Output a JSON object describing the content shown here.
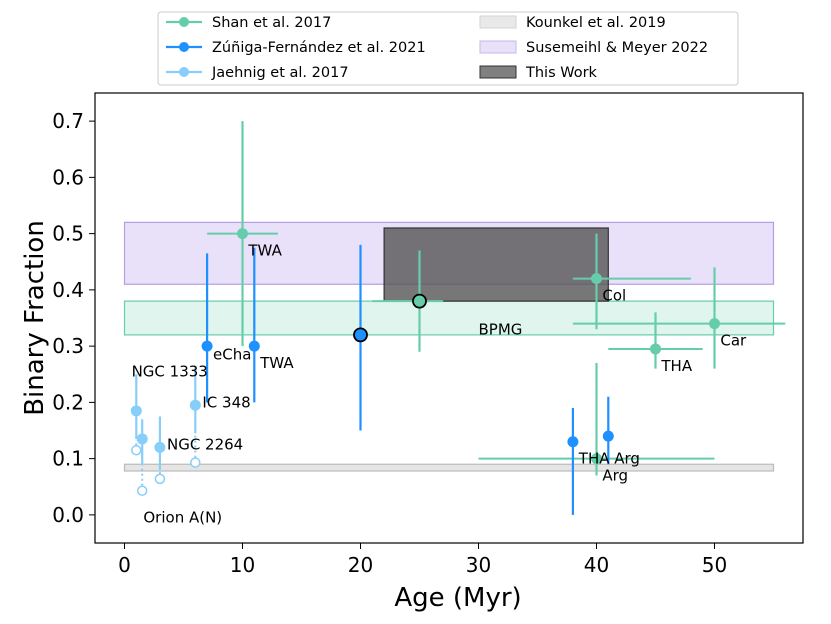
{
  "chart_data": {
    "type": "scatter",
    "xlabel": "Age (Myr)",
    "ylabel": "Binary Fraction",
    "xlim": [
      -2.5,
      57.5
    ],
    "ylim": [
      -0.05,
      0.75
    ],
    "xticks": [
      0,
      10,
      20,
      30,
      40,
      50
    ],
    "yticks": [
      0.0,
      0.1,
      0.2,
      0.3,
      0.4,
      0.5,
      0.6,
      0.7
    ],
    "xtick_labels": [
      "0",
      "10",
      "20",
      "30",
      "40",
      "50"
    ],
    "ytick_labels": [
      "0.0",
      "0.1",
      "0.2",
      "0.3",
      "0.4",
      "0.5",
      "0.6",
      "0.7"
    ],
    "legend_position": "top-center-outside",
    "legend": [
      {
        "label": "Shan et al. 2017",
        "kind": "line",
        "color": "#66cdaa"
      },
      {
        "label": "Zúñiga-Fernández et al. 2021",
        "kind": "line",
        "color": "#1e90ff"
      },
      {
        "label": "Jaehnig et al. 2017",
        "kind": "line",
        "color": "#87cefa"
      },
      {
        "label": "Kounkel et al. 2019",
        "kind": "patch",
        "color": "#d3d3d3"
      },
      {
        "label": "Susemeihl & Meyer 2022",
        "kind": "patch",
        "color": "#c8b5f0"
      },
      {
        "label": "This Work",
        "kind": "patch",
        "color": "#555555"
      }
    ],
    "bands": [
      {
        "name": "Kounkel et al. 2019",
        "x": [
          0,
          55
        ],
        "y": [
          0.078,
          0.09
        ],
        "color": "#cccccc",
        "edge": "#bbbbbb",
        "opacity": 0.5
      },
      {
        "name": "Susemeihl & Meyer 2022",
        "x": [
          0,
          55
        ],
        "y": [
          0.41,
          0.52
        ],
        "color": "#c8b5f0",
        "edge": "#b39ee6",
        "opacity": 0.4
      },
      {
        "name": "Shan band",
        "x": [
          0,
          55
        ],
        "y": [
          0.32,
          0.38
        ],
        "color": "#66cdaa",
        "edge": "#66cdaa",
        "opacity": 0.2
      },
      {
        "name": "This Work",
        "x": [
          22,
          41
        ],
        "y": [
          0.38,
          0.51
        ],
        "color": "#555555",
        "edge": "#333333",
        "opacity": 0.8
      }
    ],
    "series": [
      {
        "name": "Shan et al. 2017",
        "color": "#66cdaa",
        "points": [
          {
            "x": 10,
            "y": 0.5,
            "xerr": [
              3,
              3
            ],
            "yerr": [
              0.2,
              0.2
            ],
            "label": "TWA"
          },
          {
            "x": 40,
            "y": 0.42,
            "xerr": [
              2,
              8
            ],
            "yerr": [
              0.09,
              0.08
            ],
            "label": "Col"
          },
          {
            "x": 50,
            "y": 0.34,
            "xerr": [
              12,
              6
            ],
            "yerr": [
              0.08,
              0.1
            ],
            "label": "Car"
          },
          {
            "x": 45,
            "y": 0.295,
            "xerr": [
              4,
              4
            ],
            "yerr": [
              0.035,
              0.065
            ],
            "label": "THA"
          },
          {
            "x": 40,
            "y": 0.1,
            "xerr": [
              10,
              10
            ],
            "yerr": [
              0.03,
              0.17
            ],
            "label": "Arg"
          }
        ]
      },
      {
        "name": "Shan BPMG",
        "color": "#66cdaa",
        "edge": "#000000",
        "points": [
          {
            "x": 25,
            "y": 0.38,
            "xerr": [
              4,
              2
            ],
            "yerr": [
              0.09,
              0.09
            ],
            "label": "BPMG"
          }
        ]
      },
      {
        "name": "Zúñiga-Fernández et al. 2021",
        "color": "#1e90ff",
        "points": [
          {
            "x": 7,
            "y": 0.3,
            "xerr": [
              0,
              0
            ],
            "yerr": [
              0.1,
              0.165
            ],
            "label": "eCha"
          },
          {
            "x": 11,
            "y": 0.3,
            "xerr": [
              0,
              0
            ],
            "yerr": [
              0.1,
              0.175
            ],
            "label": "TWA"
          },
          {
            "x": 38,
            "y": 0.13,
            "xerr": [
              0,
              0
            ],
            "yerr": [
              0.13,
              0.06
            ],
            "label": "THA"
          },
          {
            "x": 41,
            "y": 0.14,
            "xerr": [
              0,
              0
            ],
            "yerr": [
              0.05,
              0.07
            ],
            "label": "Arg"
          }
        ]
      },
      {
        "name": "Zúñiga-Fernández BPMG",
        "color": "#1e90ff",
        "edge": "#000000",
        "points": [
          {
            "x": 20,
            "y": 0.32,
            "xerr": [
              0,
              0
            ],
            "yerr": [
              0.17,
              0.16
            ],
            "label": ""
          }
        ]
      },
      {
        "name": "Jaehnig et al. 2017",
        "color": "#87cefa",
        "points": [
          {
            "x": 1,
            "y": 0.185,
            "yerr": [
              0.05,
              0.065
            ],
            "label": "NGC 1333",
            "hollow_y": 0.115
          },
          {
            "x": 1.5,
            "y": 0.135,
            "yerr": [
              0.045,
              0.035
            ],
            "label": "Orion A(N)",
            "hollow_y": 0.043
          },
          {
            "x": 3,
            "y": 0.12,
            "yerr": [
              0.04,
              0.055
            ],
            "label": "NGC 2264",
            "hollow_y": 0.064
          },
          {
            "x": 6,
            "y": 0.195,
            "yerr": [
              0.05,
              0.07
            ],
            "label": "IC 348",
            "hollow_y": 0.093
          }
        ]
      }
    ],
    "annotations": [
      {
        "text": "TWA",
        "x": 10.5,
        "y": 0.47
      },
      {
        "text": "Col",
        "x": 40.5,
        "y": 0.39
      },
      {
        "text": "Car",
        "x": 50.5,
        "y": 0.31
      },
      {
        "text": "THA",
        "x": 45.5,
        "y": 0.265
      },
      {
        "text": "Arg",
        "x": 40.5,
        "y": 0.07
      },
      {
        "text": "BPMG",
        "x": 30,
        "y": 0.33
      },
      {
        "text": "eCha",
        "x": 7.5,
        "y": 0.285
      },
      {
        "text": "TWA",
        "x": 11.5,
        "y": 0.27
      },
      {
        "text": "THA",
        "x": 38.5,
        "y": 0.1
      },
      {
        "text": "Arg",
        "x": 41.5,
        "y": 0.1
      },
      {
        "text": "NGC 1333",
        "x": 0.6,
        "y": 0.255
      },
      {
        "text": "IC 348",
        "x": 6.6,
        "y": 0.2
      },
      {
        "text": "NGC 2264",
        "x": 3.6,
        "y": 0.125
      },
      {
        "text": "Orion A(N)",
        "x": 1.6,
        "y": -0.005
      }
    ]
  }
}
